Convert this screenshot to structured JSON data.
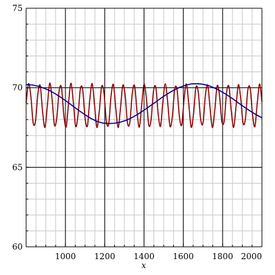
{
  "chart_data": {
    "type": "line",
    "title": "",
    "xlabel": "x",
    "ylabel": "",
    "xlim": [
      800,
      2000
    ],
    "ylim": [
      60,
      75
    ],
    "x_ticks": [
      1000,
      1200,
      1400,
      1600,
      1800,
      2000
    ],
    "y_ticks": [
      60,
      65,
      70,
      75
    ],
    "x_tick_labels": [
      "1000",
      "1200",
      "1400",
      "1600",
      "1800",
      "2000"
    ],
    "y_tick_labels": [
      "60",
      "65",
      "70",
      "75"
    ],
    "x_minor_step": 50,
    "y_minor_step": 1,
    "grid": true,
    "legend": "none",
    "colors": {
      "fast": "#8b0000",
      "slow": "#00008b",
      "grid": "#c8c8c8",
      "major_grid": "#000000"
    },
    "series": [
      {
        "x": [
          800,
          812,
          824,
          836,
          848,
          860,
          872,
          884,
          896,
          908,
          920,
          932,
          944,
          956,
          968,
          980,
          992,
          1004,
          1016,
          1028,
          1040,
          1052,
          1064,
          1076,
          1088,
          1100,
          1112,
          1124,
          1136,
          1148,
          1160,
          1172,
          1184,
          1196,
          1208,
          1220,
          1232,
          1244,
          1256,
          1268,
          1280,
          1292,
          1304,
          1316,
          1328,
          1340,
          1352,
          1364,
          1376,
          1388,
          1400,
          1412,
          1424,
          1436,
          1448,
          1460,
          1472,
          1484,
          1496,
          1508,
          1520,
          1532,
          1544,
          1556,
          1568,
          1580,
          1592,
          1604,
          1616,
          1628,
          1640,
          1652,
          1664,
          1676,
          1688,
          1700,
          1712,
          1724,
          1736,
          1748,
          1760,
          1772,
          1784,
          1796,
          1808,
          1820,
          1832,
          1844,
          1856,
          1868,
          1880,
          1892,
          1904,
          1916,
          1928,
          1940,
          1952,
          1964,
          1976,
          1988,
          2000
        ],
        "y": [
          69.04,
          70.25,
          69.48,
          67.78,
          67.93,
          69.65,
          70.13,
          68.46,
          67.51,
          68.87,
          70.29,
          69.3,
          67.66,
          68.09,
          69.81,
          70.01,
          68.26,
          67.54,
          69.06,
          70.29,
          69.12,
          67.57,
          68.28,
          69.93,
          69.87,
          68.08,
          67.61,
          69.26,
          70.27,
          68.94,
          67.51,
          68.49,
          70.07,
          69.7,
          67.92,
          67.71,
          69.45,
          70.21,
          68.74,
          67.5,
          68.7,
          70.16,
          69.51,
          67.77,
          67.84,
          69.62,
          70.13,
          68.55,
          67.52,
          68.91,
          70.23,
          69.33,
          67.66,
          67.99,
          69.78,
          70.02,
          68.36,
          67.58,
          69.13,
          70.25,
          69.13,
          67.58,
          68.17,
          69.91,
          69.88,
          68.19,
          67.67,
          69.32,
          70.24,
          68.94,
          67.52,
          68.37,
          70.02,
          69.72,
          68.03,
          67.78,
          69.51,
          70.17,
          68.74,
          67.5,
          68.59,
          70.12,
          69.53,
          67.89,
          67.9,
          69.69,
          70.08,
          68.54,
          67.51,
          68.8,
          70.19,
          69.34,
          67.77,
          68.05,
          69.84,
          69.97,
          68.33,
          67.55,
          69.01,
          70.24,
          69.13
        ]
      },
      {
        "x": [
          800,
          830,
          860,
          890,
          920,
          950,
          980,
          1010,
          1040,
          1070,
          1100,
          1130,
          1160,
          1190,
          1220,
          1250,
          1280,
          1310,
          1340,
          1370,
          1400,
          1430,
          1460,
          1490,
          1520,
          1550,
          1580,
          1610,
          1640,
          1670,
          1700,
          1730,
          1760,
          1790,
          1820,
          1850,
          1880,
          1910,
          1940,
          1970,
          2000
        ],
        "y": [
          70.2,
          70.18,
          70.1,
          69.98,
          69.82,
          69.61,
          69.37,
          69.11,
          68.83,
          68.56,
          68.3,
          68.07,
          67.89,
          67.78,
          67.75,
          67.77,
          67.84,
          67.96,
          68.13,
          68.35,
          68.59,
          68.85,
          69.11,
          69.38,
          69.62,
          69.84,
          70.02,
          70.16,
          70.24,
          70.26,
          70.22,
          70.13,
          69.98,
          69.79,
          69.57,
          69.32,
          69.05,
          68.79,
          68.54,
          68.31,
          68.11
        ]
      }
    ]
  }
}
